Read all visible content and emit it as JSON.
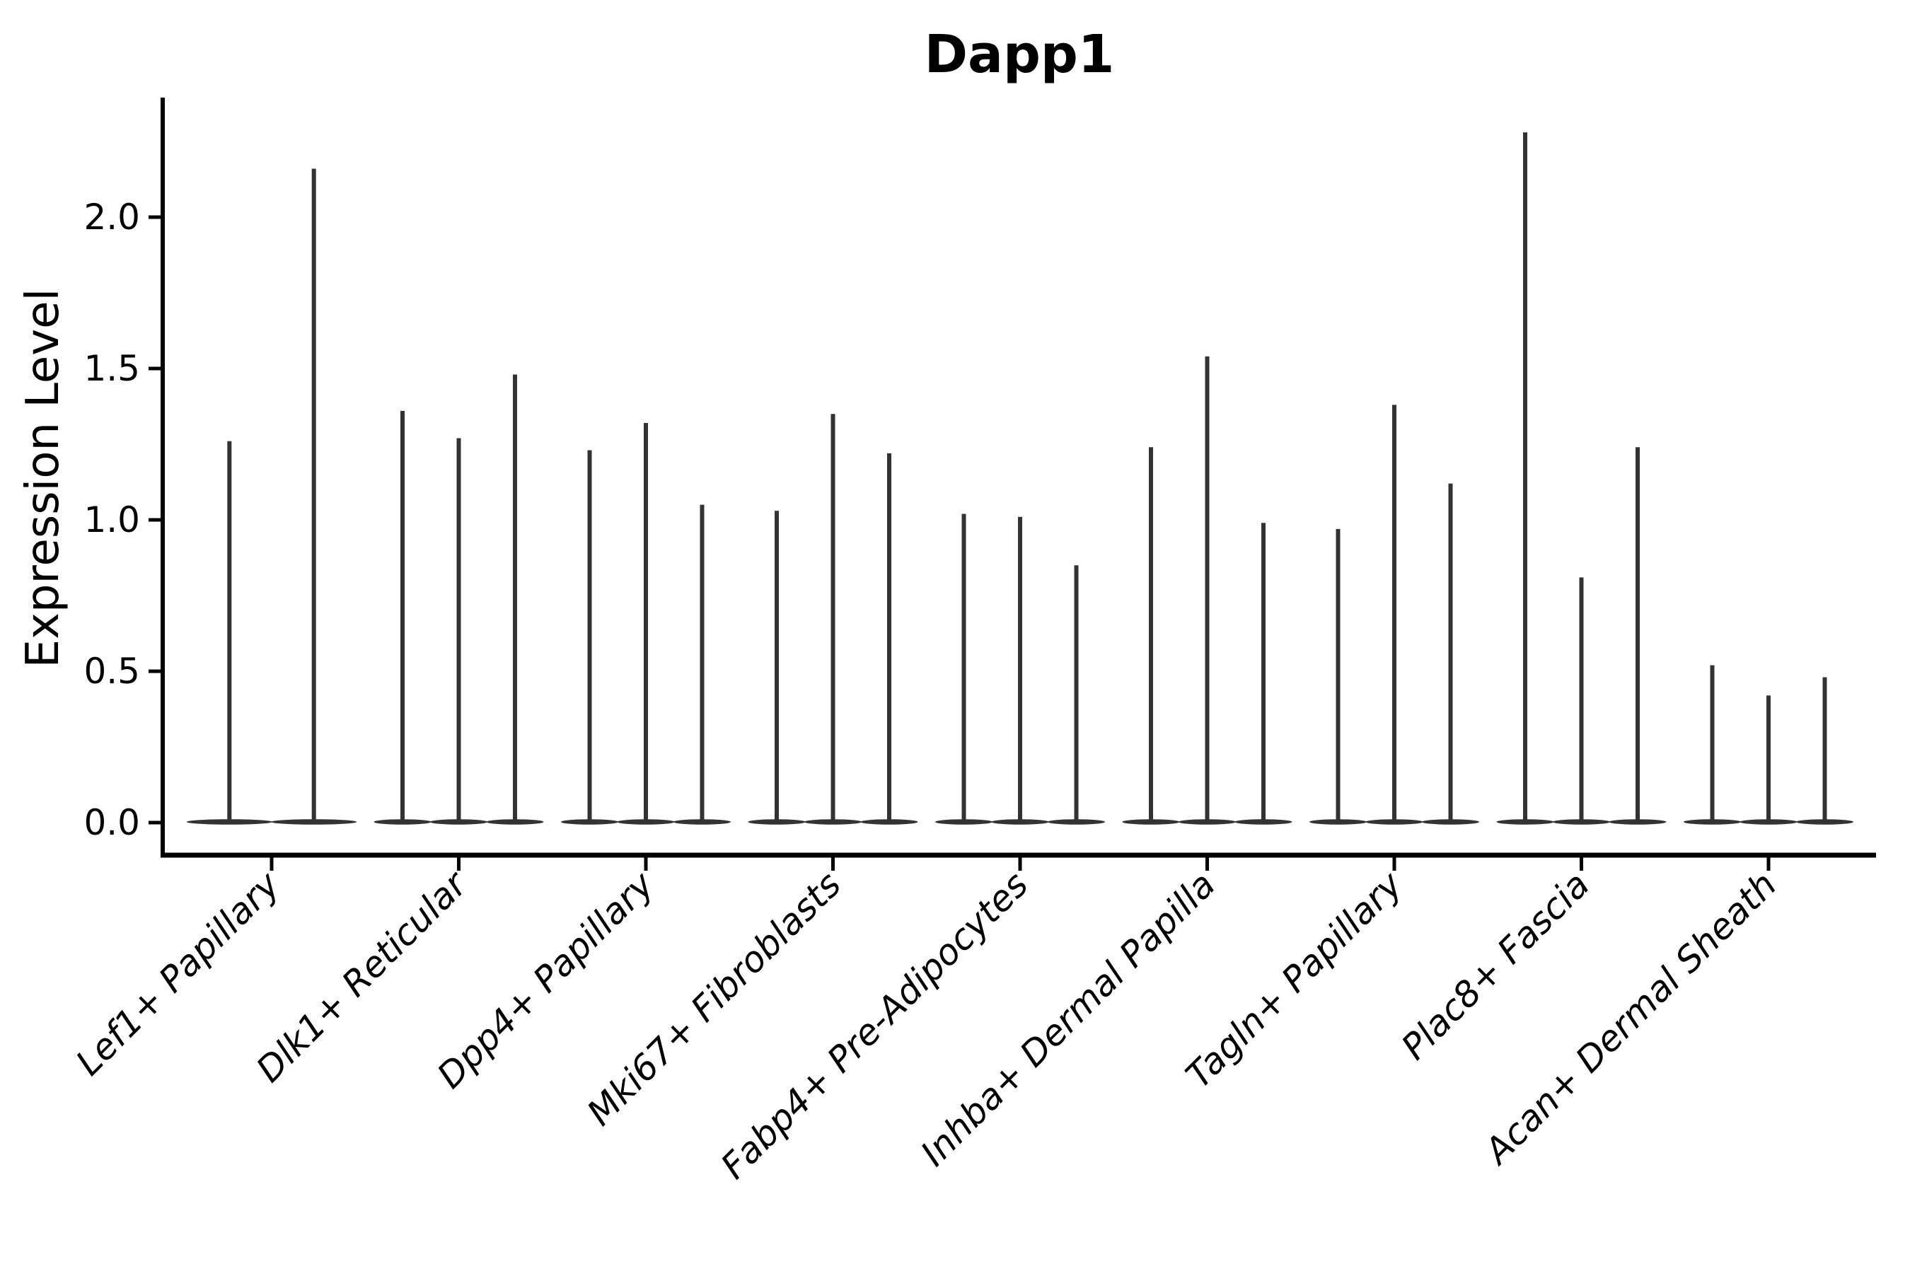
{
  "chart_data": {
    "type": "violin",
    "title": "Dapp1",
    "xlabel": "",
    "ylabel": "Expression Level",
    "yticks": [
      0.0,
      0.5,
      1.0,
      1.5,
      2.0
    ],
    "ylim": [
      -0.11,
      2.39
    ],
    "grid": false,
    "legend": "none",
    "style_note": "Seurat/scanpy-style stacked violin plot: each category holds 2-3 very thin black violins that are flat pancakes at 0 with narrow spikes up to the max expression value",
    "categories": [
      "Lef1+ Papillary",
      "Dlk1+ Reticular",
      "Dpp4+ Papillary",
      "Mki67+ Fibroblasts",
      "Fabp4+ Pre-Adipocytes",
      "Inhba+ Dermal Papilla",
      "Tagln+ Papillary",
      "Plac8+ Fascia",
      "Acan+ Dermal Sheath"
    ],
    "violins": [
      {
        "category": "Lef1+ Papillary",
        "max_values": [
          1.26,
          2.16
        ]
      },
      {
        "category": "Dlk1+ Reticular",
        "max_values": [
          1.36,
          1.27,
          1.48
        ]
      },
      {
        "category": "Dpp4+ Papillary",
        "max_values": [
          1.23,
          1.32,
          1.05
        ]
      },
      {
        "category": "Mki67+ Fibroblasts",
        "max_values": [
          1.03,
          1.35,
          1.22
        ]
      },
      {
        "category": "Fabp4+ Pre-Adipocytes",
        "max_values": [
          1.02,
          1.01,
          0.85
        ]
      },
      {
        "category": "Inhba+ Dermal Papilla",
        "max_values": [
          1.24,
          1.54,
          0.99
        ]
      },
      {
        "category": "Tagln+ Papillary",
        "max_values": [
          0.97,
          1.38,
          1.12
        ]
      },
      {
        "category": "Plac8+ Fascia",
        "max_values": [
          2.28,
          0.81,
          1.24
        ]
      },
      {
        "category": "Acan+ Dermal Sheath",
        "max_values": [
          0.52,
          0.42,
          0.48
        ]
      }
    ],
    "colors": {
      "background": "#ffffff",
      "spine": "#000000",
      "violin": "#333333",
      "text": "#000000"
    }
  }
}
